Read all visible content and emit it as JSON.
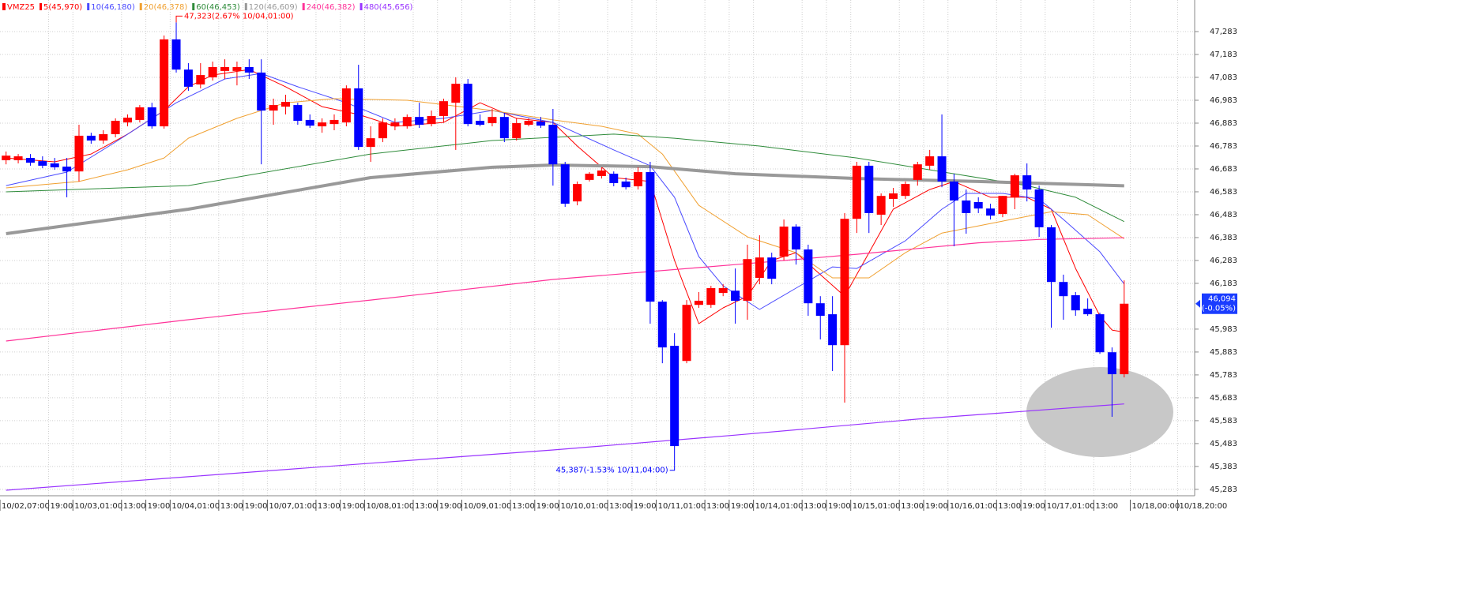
{
  "chart_data": {
    "type": "candlestick",
    "symbol": "VMZ25",
    "up_color": "#ff0000",
    "down_color": "#0000ff",
    "grid": true,
    "xlim": [
      -0.5,
      97.8
    ],
    "ylim": [
      45255,
      47421
    ],
    "open": [
      46721,
      46721,
      46731,
      46717,
      46707,
      46693,
      46672,
      46828,
      46807,
      46835,
      46886,
      46897,
      46952,
      46869,
      47249,
      47117,
      47052,
      47083,
      47111,
      47111,
      47128,
      47104,
      46938,
      46955,
      46962,
      46897,
      46869,
      46879,
      46886,
      47035,
      46779,
      46817,
      46869,
      46869,
      46910,
      46879,
      46914,
      46972,
      47055,
      46893,
      46883,
      46910,
      46817,
      46876,
      46890,
      46876,
      46703,
      46541,
      46635,
      46652,
      46662,
      46628,
      46607,
      46669,
      46103,
      45910,
      45844,
      46089,
      46089,
      46141,
      46151,
      46107,
      46207,
      46296,
      46300,
      46431,
      46331,
      46096,
      46048,
      45913,
      46465,
      46697,
      46483,
      46552,
      46565,
      46635,
      46697,
      46738,
      46628,
      46545,
      46538,
      46510,
      46486,
      46559,
      46655,
      46593,
      46428,
      46189,
      46131,
      46072,
      46048,
      45882,
      45786
    ],
    "high": [
      46759,
      46748,
      46748,
      46738,
      46731,
      46731,
      46876,
      46841,
      46852,
      46904,
      46921,
      46962,
      46972,
      47266,
      47323,
      47145,
      47145,
      47152,
      47162,
      47152,
      47162,
      47162,
      46990,
      47007,
      46972,
      46921,
      46904,
      46921,
      47048,
      47138,
      46869,
      46904,
      46904,
      46921,
      46972,
      46938,
      46990,
      47083,
      47076,
      46921,
      46945,
      46928,
      46904,
      46904,
      46910,
      46945,
      46714,
      46628,
      46669,
      46690,
      46672,
      46645,
      46690,
      46714,
      46110,
      45965,
      46110,
      46145,
      46172,
      46179,
      46248,
      46352,
      46393,
      46317,
      46462,
      46441,
      46352,
      46127,
      46127,
      46490,
      46714,
      46714,
      46576,
      46600,
      46628,
      46714,
      46766,
      46921,
      46662,
      46593,
      46559,
      46531,
      46565,
      46662,
      46707,
      46610,
      46438,
      46221,
      46145,
      46117,
      46055,
      45903,
      46196
    ],
    "low": [
      46703,
      46707,
      46697,
      46686,
      46679,
      46559,
      46628,
      46793,
      46793,
      46821,
      46869,
      46886,
      46859,
      46859,
      47104,
      47024,
      47035,
      47069,
      47076,
      47048,
      47076,
      46703,
      46876,
      46921,
      46876,
      46862,
      46841,
      46852,
      46869,
      46766,
      46714,
      46800,
      46852,
      46859,
      46862,
      46869,
      46886,
      46766,
      46869,
      46869,
      46869,
      46800,
      46807,
      46869,
      46862,
      46610,
      46517,
      46524,
      46628,
      46641,
      46607,
      46593,
      46593,
      46007,
      45834,
      45387,
      45834,
      46076,
      46076,
      46127,
      46007,
      46024,
      46179,
      46179,
      46283,
      46265,
      46041,
      45938,
      45800,
      45662,
      46403,
      46403,
      46438,
      46517,
      46552,
      46610,
      46679,
      46603,
      46345,
      46400,
      46490,
      46462,
      46472,
      46507,
      46541,
      46386,
      45989,
      46024,
      46041,
      46041,
      45875,
      45600,
      45772
    ],
    "close": [
      46741,
      46738,
      46710,
      46697,
      46690,
      46672,
      46828,
      46807,
      46835,
      46893,
      46907,
      46952,
      46869,
      47249,
      47117,
      47042,
      47093,
      47128,
      47128,
      47128,
      47104,
      46938,
      46962,
      46976,
      46893,
      46872,
      46886,
      46897,
      47035,
      46779,
      46817,
      46886,
      46886,
      46910,
      46876,
      46914,
      46979,
      47055,
      46879,
      46876,
      46910,
      46817,
      46883,
      46893,
      46872,
      46703,
      46531,
      46617,
      46662,
      46676,
      46621,
      46603,
      46669,
      46103,
      45903,
      45472,
      46089,
      46107,
      46162,
      46162,
      46107,
      46289,
      46296,
      46203,
      46431,
      46331,
      46096,
      46041,
      45913,
      46465,
      46697,
      46490,
      46565,
      46576,
      46617,
      46703,
      46738,
      46628,
      46545,
      46490,
      46510,
      46479,
      46565,
      46655,
      46593,
      46428,
      46189,
      46127,
      46065,
      46048,
      45882,
      45786,
      46094
    ],
    "series": [
      {
        "name": "5(45,970)",
        "color": "#ff0000",
        "x": [
          0,
          4,
          7,
          10,
          13,
          15,
          17,
          20,
          23,
          26,
          29,
          32,
          36,
          39,
          42,
          45,
          47,
          50,
          53,
          55,
          57,
          59,
          61,
          63,
          65,
          67,
          69,
          71,
          73,
          76,
          78,
          81,
          84,
          86,
          88,
          90,
          91,
          92
        ],
        "values": [
          46731,
          46714,
          46748,
          46835,
          46938,
          47042,
          47093,
          47117,
          47042,
          46955,
          46921,
          46869,
          46886,
          46972,
          46904,
          46886,
          46783,
          46645,
          46628,
          46283,
          46007,
          46076,
          46127,
          46283,
          46317,
          46221,
          46127,
          46317,
          46507,
          46593,
          46628,
          46559,
          46559,
          46507,
          46248,
          46041,
          45979,
          45970
        ]
      },
      {
        "name": "10(46,180)",
        "color": "#4a4aff",
        "x": [
          0,
          5,
          9,
          14,
          18,
          21,
          24,
          28,
          32,
          36,
          40,
          45,
          50,
          53,
          55,
          57,
          59,
          62,
          65,
          68,
          70,
          74,
          77,
          79,
          82,
          85,
          87,
          90,
          92
        ],
        "values": [
          46610,
          46669,
          46800,
          46972,
          47076,
          47100,
          47042,
          46972,
          46886,
          46904,
          46938,
          46886,
          46766,
          46697,
          46559,
          46300,
          46172,
          46069,
          46162,
          46255,
          46248,
          46369,
          46507,
          46576,
          46576,
          46552,
          46462,
          46321,
          46180
        ]
      },
      {
        "name": "20(46,378)",
        "color": "#f0a030",
        "x": [
          0,
          6,
          10,
          13,
          15,
          19,
          23,
          27,
          33,
          40,
          45,
          49,
          52,
          54,
          57,
          61,
          65,
          68,
          71,
          74,
          77,
          82,
          86,
          89,
          92
        ],
        "values": [
          46600,
          46628,
          46679,
          46731,
          46817,
          46904,
          46972,
          46990,
          46983,
          46938,
          46897,
          46869,
          46835,
          46748,
          46524,
          46386,
          46317,
          46207,
          46207,
          46317,
          46403,
          46455,
          46496,
          46483,
          46378
        ]
      },
      {
        "name": "60(46,453)",
        "color": "#2e8b3a",
        "x": [
          0,
          15,
          30,
          40,
          50,
          55,
          62,
          70,
          78,
          84,
          88,
          92
        ],
        "values": [
          46583,
          46610,
          46748,
          46807,
          46835,
          46817,
          46783,
          46731,
          46662,
          46610,
          46559,
          46453
        ]
      },
      {
        "name": "120(46,609)",
        "color": "#999999",
        "x": [
          0,
          15,
          30,
          40,
          45,
          53,
          60,
          70,
          80,
          92
        ],
        "values": [
          46400,
          46507,
          46645,
          46690,
          46700,
          46693,
          46662,
          46641,
          46628,
          46609
        ]
      },
      {
        "name": "240(46,382)",
        "color": "#ff3399",
        "x": [
          0,
          15,
          30,
          45,
          60,
          70,
          80,
          85,
          92
        ],
        "values": [
          45931,
          46024,
          46110,
          46200,
          46265,
          46310,
          46360,
          46375,
          46382
        ]
      },
      {
        "name": "480(45,656)",
        "color": "#9933ff",
        "x": [
          0,
          15,
          30,
          45,
          60,
          75,
          92
        ],
        "values": [
          45279,
          45338,
          45397,
          45455,
          45520,
          45590,
          45656
        ]
      }
    ],
    "yticks": [
      {
        "value": 47283,
        "label": "47,283"
      },
      {
        "value": 47183,
        "label": "47,183"
      },
      {
        "value": 47083,
        "label": "47,083"
      },
      {
        "value": 46983,
        "label": "46,983"
      },
      {
        "value": 46883,
        "label": "46,883"
      },
      {
        "value": 46783,
        "label": "46,783"
      },
      {
        "value": 46683,
        "label": "46,683"
      },
      {
        "value": 46583,
        "label": "46,583"
      },
      {
        "value": 46483,
        "label": "46,483"
      },
      {
        "value": 46383,
        "label": "46,383"
      },
      {
        "value": 46283,
        "label": "46,283"
      },
      {
        "value": 46183,
        "label": "46,183"
      },
      {
        "value": 45983,
        "label": "45,983"
      },
      {
        "value": 45883,
        "label": "45,883"
      },
      {
        "value": 45783,
        "label": "45,783"
      },
      {
        "value": 45683,
        "label": "45,683"
      },
      {
        "value": 45583,
        "label": "45,583"
      },
      {
        "value": 45483,
        "label": "45,483"
      },
      {
        "value": 45383,
        "label": "45,383"
      },
      {
        "value": 45283,
        "label": "45,283"
      }
    ],
    "xticks": [
      {
        "value": -0.5,
        "label": "10/02,07:00"
      },
      {
        "value": 3.5,
        "label": "19:00"
      },
      {
        "value": 5.5,
        "label": "10/03,01:00"
      },
      {
        "value": 9.5,
        "label": "13:00"
      },
      {
        "value": 11.5,
        "label": "19:00"
      },
      {
        "value": 13.5,
        "label": "10/04,01:00"
      },
      {
        "value": 17.5,
        "label": "13:00"
      },
      {
        "value": 19.5,
        "label": "19:00"
      },
      {
        "value": 21.5,
        "label": "10/07,01:00"
      },
      {
        "value": 25.5,
        "label": "13:00"
      },
      {
        "value": 27.5,
        "label": "19:00"
      },
      {
        "value": 29.5,
        "label": "10/08,01:00"
      },
      {
        "value": 33.5,
        "label": "13:00"
      },
      {
        "value": 35.5,
        "label": "19:00"
      },
      {
        "value": 37.5,
        "label": "10/09,01:00"
      },
      {
        "value": 41.5,
        "label": "13:00"
      },
      {
        "value": 43.5,
        "label": "19:00"
      },
      {
        "value": 45.5,
        "label": "10/10,01:00"
      },
      {
        "value": 49.5,
        "label": "13:00"
      },
      {
        "value": 51.5,
        "label": "19:00"
      },
      {
        "value": 53.5,
        "label": "10/11,01:00"
      },
      {
        "value": 57.5,
        "label": "13:00"
      },
      {
        "value": 59.5,
        "label": "19:00"
      },
      {
        "value": 61.5,
        "label": "10/14,01:00"
      },
      {
        "value": 65.5,
        "label": "13:00"
      },
      {
        "value": 67.5,
        "label": "19:00"
      },
      {
        "value": 69.5,
        "label": "10/15,01:00"
      },
      {
        "value": 73.5,
        "label": "13:00"
      },
      {
        "value": 75.5,
        "label": "19:00"
      },
      {
        "value": 77.5,
        "label": "10/16,01:00"
      },
      {
        "value": 81.5,
        "label": "13:00"
      },
      {
        "value": 83.5,
        "label": "19:00"
      },
      {
        "value": 85.5,
        "label": "10/17,01:00"
      },
      {
        "value": 89.5,
        "label": "13:00"
      },
      {
        "value": 92.5,
        "label": "10/18,00:00"
      },
      {
        "value": 96.4,
        "label": "10/18,20:00"
      }
    ],
    "annotations": [
      {
        "text": "47,323(2.67% 10/04,01:00)",
        "x": 14,
        "y": 47323,
        "color": "#ff0000"
      },
      {
        "text": "45,387(-1.53% 10/11,04:00)",
        "x": 55,
        "y": 45387,
        "color": "#0000ff"
      }
    ],
    "last_price": {
      "value": 46094,
      "label": "46,094",
      "change": "(-0.05%)"
    }
  }
}
